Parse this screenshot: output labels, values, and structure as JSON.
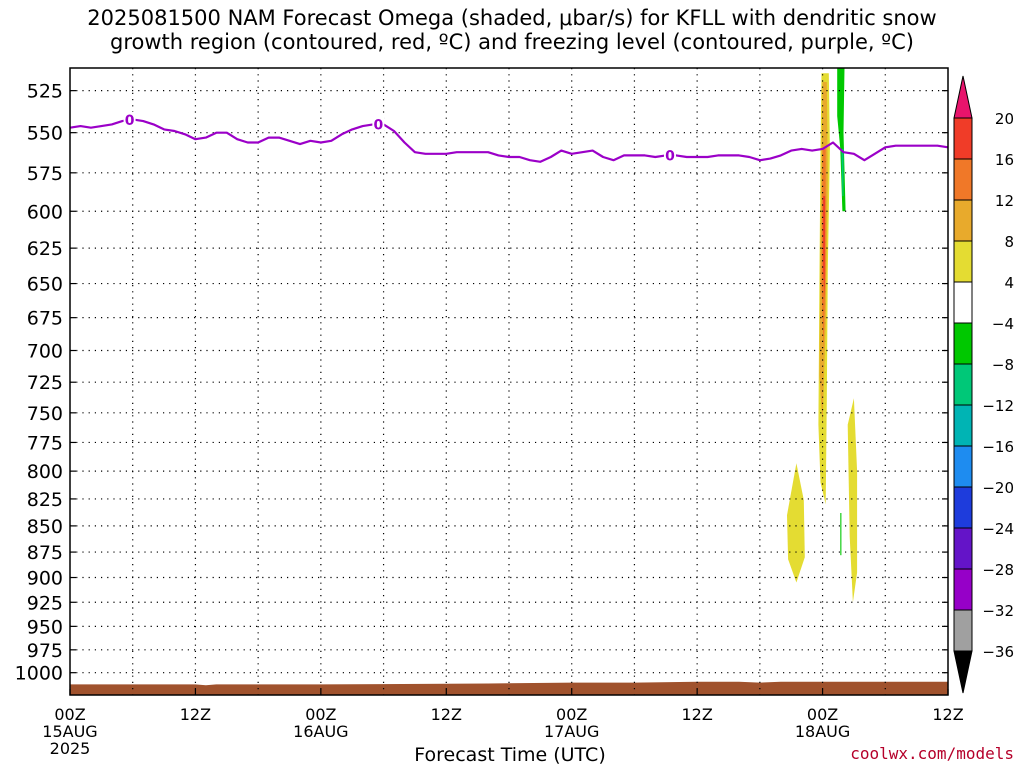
{
  "title": {
    "line1": "2025081500 NAM Forecast Omega (shaded, μbar/s) for KFLL with dendritic snow",
    "line2": "growth region (contoured, red, ºC) and freezing level (contoured, purple, ºC)"
  },
  "credit": "coolwx.com/models",
  "chart_data": {
    "type": "heatmap",
    "title": "2025081500 NAM Forecast Omega (shaded, μbar/s) for KFLL with dendritic snow growth region (contoured, red, ºC) and freezing level (contoured, purple, ºC)",
    "xlabel": "Forecast Time (UTC)",
    "ylabel": "",
    "x_unit": "forecast hour",
    "xlim": [
      0,
      84
    ],
    "ylim": [
      1025,
      512
    ],
    "y_scale": "log-pressure",
    "grid": true,
    "y_ticks": [
      525,
      550,
      575,
      600,
      625,
      650,
      675,
      700,
      725,
      750,
      775,
      800,
      825,
      850,
      875,
      900,
      925,
      950,
      975,
      1000
    ],
    "x_ticks": [
      {
        "hour": 0,
        "label": "00Z",
        "sub": "15AUG",
        "sub2": "2025"
      },
      {
        "hour": 12,
        "label": "12Z",
        "sub": "",
        "sub2": ""
      },
      {
        "hour": 24,
        "label": "00Z",
        "sub": "16AUG",
        "sub2": ""
      },
      {
        "hour": 36,
        "label": "12Z",
        "sub": "",
        "sub2": ""
      },
      {
        "hour": 48,
        "label": "00Z",
        "sub": "17AUG",
        "sub2": ""
      },
      {
        "hour": 60,
        "label": "12Z",
        "sub": "",
        "sub2": ""
      },
      {
        "hour": 72,
        "label": "00Z",
        "sub": "18AUG",
        "sub2": ""
      },
      {
        "hour": 84,
        "label": "12Z",
        "sub": "",
        "sub2": ""
      }
    ],
    "colorbar": {
      "labels": [
        "20",
        "16",
        "12",
        "8",
        "4",
        "-4",
        "-8",
        "-12",
        "-16",
        "-20",
        "-24",
        "-28",
        "-32",
        "-36"
      ],
      "colors_top_to_bottom": [
        "#e8146c",
        "#f03c28",
        "#f07828",
        "#e8aa2c",
        "#e4dc32",
        "#ffffff",
        "#00c800",
        "#00c878",
        "#00b4b4",
        "#1e8cf0",
        "#1e3cdc",
        "#6414c8",
        "#9600c8",
        "#a0a0a0",
        "#000000"
      ]
    },
    "freezing_level": {
      "label": "0",
      "color": "#9b00c8",
      "points": [
        [
          0,
          547
        ],
        [
          1,
          546
        ],
        [
          2,
          547
        ],
        [
          3,
          546
        ],
        [
          4,
          545
        ],
        [
          5,
          543
        ],
        [
          6,
          542
        ],
        [
          7,
          543
        ],
        [
          8,
          545
        ],
        [
          9,
          548
        ],
        [
          10,
          549
        ],
        [
          11,
          551
        ],
        [
          12,
          554
        ],
        [
          13,
          553
        ],
        [
          14,
          550
        ],
        [
          15,
          550
        ],
        [
          16,
          554
        ],
        [
          17,
          556
        ],
        [
          18,
          556
        ],
        [
          19,
          553
        ],
        [
          20,
          553
        ],
        [
          21,
          555
        ],
        [
          22,
          557
        ],
        [
          23,
          555
        ],
        [
          24,
          556
        ],
        [
          25,
          555
        ],
        [
          26,
          551
        ],
        [
          27,
          548
        ],
        [
          28,
          546
        ],
        [
          29,
          545
        ],
        [
          30,
          545
        ],
        [
          31,
          549
        ],
        [
          32,
          556
        ],
        [
          33,
          562
        ],
        [
          34,
          563
        ],
        [
          35,
          563
        ],
        [
          36,
          563
        ],
        [
          37,
          562
        ],
        [
          38,
          562
        ],
        [
          39,
          562
        ],
        [
          40,
          562
        ],
        [
          41,
          564
        ],
        [
          42,
          565
        ],
        [
          43,
          565
        ],
        [
          44,
          567
        ],
        [
          45,
          568
        ],
        [
          46,
          565
        ],
        [
          47,
          561
        ],
        [
          48,
          563
        ],
        [
          49,
          562
        ],
        [
          50,
          561
        ],
        [
          51,
          565
        ],
        [
          52,
          567
        ],
        [
          53,
          564
        ],
        [
          54,
          564
        ],
        [
          55,
          564
        ],
        [
          56,
          565
        ],
        [
          57,
          564
        ],
        [
          58,
          564
        ],
        [
          59,
          565
        ],
        [
          60,
          565
        ],
        [
          61,
          565
        ],
        [
          62,
          564
        ],
        [
          63,
          564
        ],
        [
          64,
          564
        ],
        [
          65,
          565
        ],
        [
          66,
          567
        ],
        [
          67,
          566
        ],
        [
          68,
          564
        ],
        [
          69,
          561
        ],
        [
          70,
          560
        ],
        [
          71,
          561
        ],
        [
          72,
          560
        ],
        [
          73,
          556
        ],
        [
          74,
          562
        ],
        [
          75,
          563
        ],
        [
          76,
          567
        ],
        [
          77,
          563
        ],
        [
          78,
          559
        ],
        [
          79,
          558
        ],
        [
          80,
          558
        ],
        [
          81,
          558
        ],
        [
          82,
          558
        ],
        [
          83,
          558
        ],
        [
          84,
          559
        ]
      ],
      "label_hours": [
        5.7,
        29.5,
        57.4
      ]
    },
    "omega_regions": [
      {
        "level": 4,
        "color": "#e4dc32",
        "points": [
          [
            71.9,
            515
          ],
          [
            72.6,
            515
          ],
          [
            72.7,
            560
          ],
          [
            72.5,
            640
          ],
          [
            72.4,
            740
          ],
          [
            72.3,
            830
          ],
          [
            71.8,
            810
          ],
          [
            71.6,
            760
          ],
          [
            71.7,
            650
          ],
          [
            71.8,
            560
          ]
        ]
      },
      {
        "level": 8,
        "color": "#e8aa2c",
        "points": [
          [
            72.0,
            520
          ],
          [
            72.4,
            520
          ],
          [
            72.5,
            580
          ],
          [
            72.3,
            680
          ],
          [
            72.0,
            760
          ],
          [
            71.7,
            720
          ],
          [
            71.8,
            620
          ]
        ]
      },
      {
        "level": 12,
        "color": "#f07828",
        "points": [
          [
            72.0,
            560
          ],
          [
            72.3,
            560
          ],
          [
            72.3,
            640
          ],
          [
            72.1,
            700
          ],
          [
            71.9,
            650
          ]
        ]
      },
      {
        "level": 16,
        "color": "#f03c28",
        "points": [
          [
            72.05,
            590
          ],
          [
            72.25,
            590
          ],
          [
            72.2,
            660
          ],
          [
            72.05,
            640
          ]
        ]
      },
      {
        "level": 4,
        "color": "#e4dc32",
        "points": [
          [
            69.5,
            793
          ],
          [
            70.2,
            826
          ],
          [
            70.3,
            880
          ],
          [
            69.5,
            905
          ],
          [
            68.7,
            882
          ],
          [
            68.6,
            840
          ]
        ]
      },
      {
        "level": 4,
        "color": "#e4dc32",
        "points": [
          [
            75.0,
            738
          ],
          [
            75.3,
            800
          ],
          [
            75.3,
            895
          ],
          [
            74.9,
            925
          ],
          [
            74.6,
            860
          ],
          [
            74.4,
            760
          ]
        ]
      },
      {
        "level": -4,
        "color": "#00c800",
        "points": [
          [
            73.4,
            512
          ],
          [
            74.1,
            512
          ],
          [
            74.0,
            550
          ],
          [
            74.2,
            600
          ],
          [
            73.9,
            600
          ],
          [
            73.7,
            560
          ],
          [
            73.4,
            540
          ]
        ]
      },
      {
        "level": -8,
        "color": "#00c878",
        "points": [
          [
            73.8,
            560
          ],
          [
            74.0,
            560
          ],
          [
            74.0,
            590
          ],
          [
            73.9,
            590
          ]
        ]
      },
      {
        "level": -4,
        "color": "#00c800",
        "points": [
          [
            73.7,
            838
          ],
          [
            73.8,
            838
          ],
          [
            73.8,
            878
          ],
          [
            73.7,
            878
          ]
        ]
      }
    ],
    "ground": {
      "color": "#a0522d",
      "base_pressure": 1025,
      "points": [
        [
          0,
          1013
        ],
        [
          12,
          1013
        ],
        [
          13,
          1014
        ],
        [
          14,
          1013
        ],
        [
          24,
          1013
        ],
        [
          40,
          1012
        ],
        [
          48,
          1011
        ],
        [
          54,
          1011
        ],
        [
          60,
          1010
        ],
        [
          64,
          1010
        ],
        [
          66,
          1011
        ],
        [
          68,
          1010
        ],
        [
          84,
          1010
        ]
      ]
    }
  }
}
